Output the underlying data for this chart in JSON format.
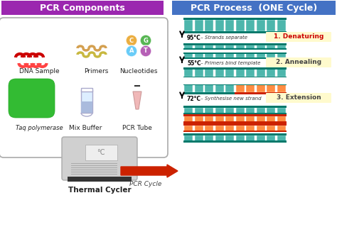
{
  "title_left": "PCR Components",
  "title_right": "PCR Process  (ONE Cycle)",
  "title_left_bg": "#9B27AF",
  "title_right_bg": "#4472C4",
  "title_text_color": "#FFFFFF",
  "bg_color": "#FFFFFF",
  "labels": {
    "dna_sample": "DNA Sample",
    "primers": "Primers",
    "nucleotides": "Nucleotides",
    "taq": "Taq polymerase",
    "mix_buffer": "Mix Buffer",
    "pcr_tube": "PCR Tube",
    "thermal_cycler": "Thermal Cycler",
    "pcr_cycle": "PCR Cycle",
    "step1": "1. Denaturing",
    "step2": "2. Annealing",
    "step3": "3. Extension",
    "temp1": "95°C",
    "temp1_desc": " – Strands separate",
    "temp2": "55°C",
    "temp2_desc": " – Primers bind template",
    "temp3": "72°C",
    "temp3_desc": " – Synthesise new strand"
  },
  "nucleotide_colors": {
    "C": "#E8A020",
    "G": "#3AAA35",
    "A": "#4FC3F7",
    "T": "#AA44AA"
  },
  "dna_color": "#CC0000",
  "taq_color": "#33BB33",
  "strand_teal": "#4DB6AC",
  "strand_dark": "#00796B",
  "strand_orange": "#FF8C42",
  "strand_red": "#CC2200",
  "step_label_bg": "#FFFACD",
  "arrow_color": "#CC2200"
}
